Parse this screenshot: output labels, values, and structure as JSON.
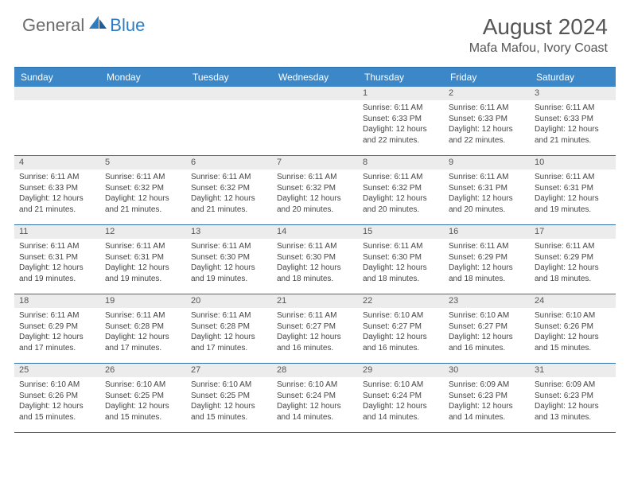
{
  "logo": {
    "general": "General",
    "blue": "Blue"
  },
  "title": "August 2024",
  "location": "Mafa Mafou, Ivory Coast",
  "colors": {
    "header_bg": "#3b87c8",
    "header_text": "#ffffff",
    "band_bg": "#ececec",
    "border": "#2f6fa8",
    "body_text": "#444444",
    "logo_gray": "#6b6b6b",
    "logo_blue": "#2f7bbf"
  },
  "dayHeaders": [
    "Sunday",
    "Monday",
    "Tuesday",
    "Wednesday",
    "Thursday",
    "Friday",
    "Saturday"
  ],
  "weeks": [
    [
      {
        "n": "",
        "sr": "",
        "ss": "",
        "dl": ""
      },
      {
        "n": "",
        "sr": "",
        "ss": "",
        "dl": ""
      },
      {
        "n": "",
        "sr": "",
        "ss": "",
        "dl": ""
      },
      {
        "n": "",
        "sr": "",
        "ss": "",
        "dl": ""
      },
      {
        "n": "1",
        "sr": "Sunrise: 6:11 AM",
        "ss": "Sunset: 6:33 PM",
        "dl": "Daylight: 12 hours and 22 minutes."
      },
      {
        "n": "2",
        "sr": "Sunrise: 6:11 AM",
        "ss": "Sunset: 6:33 PM",
        "dl": "Daylight: 12 hours and 22 minutes."
      },
      {
        "n": "3",
        "sr": "Sunrise: 6:11 AM",
        "ss": "Sunset: 6:33 PM",
        "dl": "Daylight: 12 hours and 21 minutes."
      }
    ],
    [
      {
        "n": "4",
        "sr": "Sunrise: 6:11 AM",
        "ss": "Sunset: 6:33 PM",
        "dl": "Daylight: 12 hours and 21 minutes."
      },
      {
        "n": "5",
        "sr": "Sunrise: 6:11 AM",
        "ss": "Sunset: 6:32 PM",
        "dl": "Daylight: 12 hours and 21 minutes."
      },
      {
        "n": "6",
        "sr": "Sunrise: 6:11 AM",
        "ss": "Sunset: 6:32 PM",
        "dl": "Daylight: 12 hours and 21 minutes."
      },
      {
        "n": "7",
        "sr": "Sunrise: 6:11 AM",
        "ss": "Sunset: 6:32 PM",
        "dl": "Daylight: 12 hours and 20 minutes."
      },
      {
        "n": "8",
        "sr": "Sunrise: 6:11 AM",
        "ss": "Sunset: 6:32 PM",
        "dl": "Daylight: 12 hours and 20 minutes."
      },
      {
        "n": "9",
        "sr": "Sunrise: 6:11 AM",
        "ss": "Sunset: 6:31 PM",
        "dl": "Daylight: 12 hours and 20 minutes."
      },
      {
        "n": "10",
        "sr": "Sunrise: 6:11 AM",
        "ss": "Sunset: 6:31 PM",
        "dl": "Daylight: 12 hours and 19 minutes."
      }
    ],
    [
      {
        "n": "11",
        "sr": "Sunrise: 6:11 AM",
        "ss": "Sunset: 6:31 PM",
        "dl": "Daylight: 12 hours and 19 minutes."
      },
      {
        "n": "12",
        "sr": "Sunrise: 6:11 AM",
        "ss": "Sunset: 6:31 PM",
        "dl": "Daylight: 12 hours and 19 minutes."
      },
      {
        "n": "13",
        "sr": "Sunrise: 6:11 AM",
        "ss": "Sunset: 6:30 PM",
        "dl": "Daylight: 12 hours and 19 minutes."
      },
      {
        "n": "14",
        "sr": "Sunrise: 6:11 AM",
        "ss": "Sunset: 6:30 PM",
        "dl": "Daylight: 12 hours and 18 minutes."
      },
      {
        "n": "15",
        "sr": "Sunrise: 6:11 AM",
        "ss": "Sunset: 6:30 PM",
        "dl": "Daylight: 12 hours and 18 minutes."
      },
      {
        "n": "16",
        "sr": "Sunrise: 6:11 AM",
        "ss": "Sunset: 6:29 PM",
        "dl": "Daylight: 12 hours and 18 minutes."
      },
      {
        "n": "17",
        "sr": "Sunrise: 6:11 AM",
        "ss": "Sunset: 6:29 PM",
        "dl": "Daylight: 12 hours and 18 minutes."
      }
    ],
    [
      {
        "n": "18",
        "sr": "Sunrise: 6:11 AM",
        "ss": "Sunset: 6:29 PM",
        "dl": "Daylight: 12 hours and 17 minutes."
      },
      {
        "n": "19",
        "sr": "Sunrise: 6:11 AM",
        "ss": "Sunset: 6:28 PM",
        "dl": "Daylight: 12 hours and 17 minutes."
      },
      {
        "n": "20",
        "sr": "Sunrise: 6:11 AM",
        "ss": "Sunset: 6:28 PM",
        "dl": "Daylight: 12 hours and 17 minutes."
      },
      {
        "n": "21",
        "sr": "Sunrise: 6:11 AM",
        "ss": "Sunset: 6:27 PM",
        "dl": "Daylight: 12 hours and 16 minutes."
      },
      {
        "n": "22",
        "sr": "Sunrise: 6:10 AM",
        "ss": "Sunset: 6:27 PM",
        "dl": "Daylight: 12 hours and 16 minutes."
      },
      {
        "n": "23",
        "sr": "Sunrise: 6:10 AM",
        "ss": "Sunset: 6:27 PM",
        "dl": "Daylight: 12 hours and 16 minutes."
      },
      {
        "n": "24",
        "sr": "Sunrise: 6:10 AM",
        "ss": "Sunset: 6:26 PM",
        "dl": "Daylight: 12 hours and 15 minutes."
      }
    ],
    [
      {
        "n": "25",
        "sr": "Sunrise: 6:10 AM",
        "ss": "Sunset: 6:26 PM",
        "dl": "Daylight: 12 hours and 15 minutes."
      },
      {
        "n": "26",
        "sr": "Sunrise: 6:10 AM",
        "ss": "Sunset: 6:25 PM",
        "dl": "Daylight: 12 hours and 15 minutes."
      },
      {
        "n": "27",
        "sr": "Sunrise: 6:10 AM",
        "ss": "Sunset: 6:25 PM",
        "dl": "Daylight: 12 hours and 15 minutes."
      },
      {
        "n": "28",
        "sr": "Sunrise: 6:10 AM",
        "ss": "Sunset: 6:24 PM",
        "dl": "Daylight: 12 hours and 14 minutes."
      },
      {
        "n": "29",
        "sr": "Sunrise: 6:10 AM",
        "ss": "Sunset: 6:24 PM",
        "dl": "Daylight: 12 hours and 14 minutes."
      },
      {
        "n": "30",
        "sr": "Sunrise: 6:09 AM",
        "ss": "Sunset: 6:23 PM",
        "dl": "Daylight: 12 hours and 14 minutes."
      },
      {
        "n": "31",
        "sr": "Sunrise: 6:09 AM",
        "ss": "Sunset: 6:23 PM",
        "dl": "Daylight: 12 hours and 13 minutes."
      }
    ]
  ]
}
